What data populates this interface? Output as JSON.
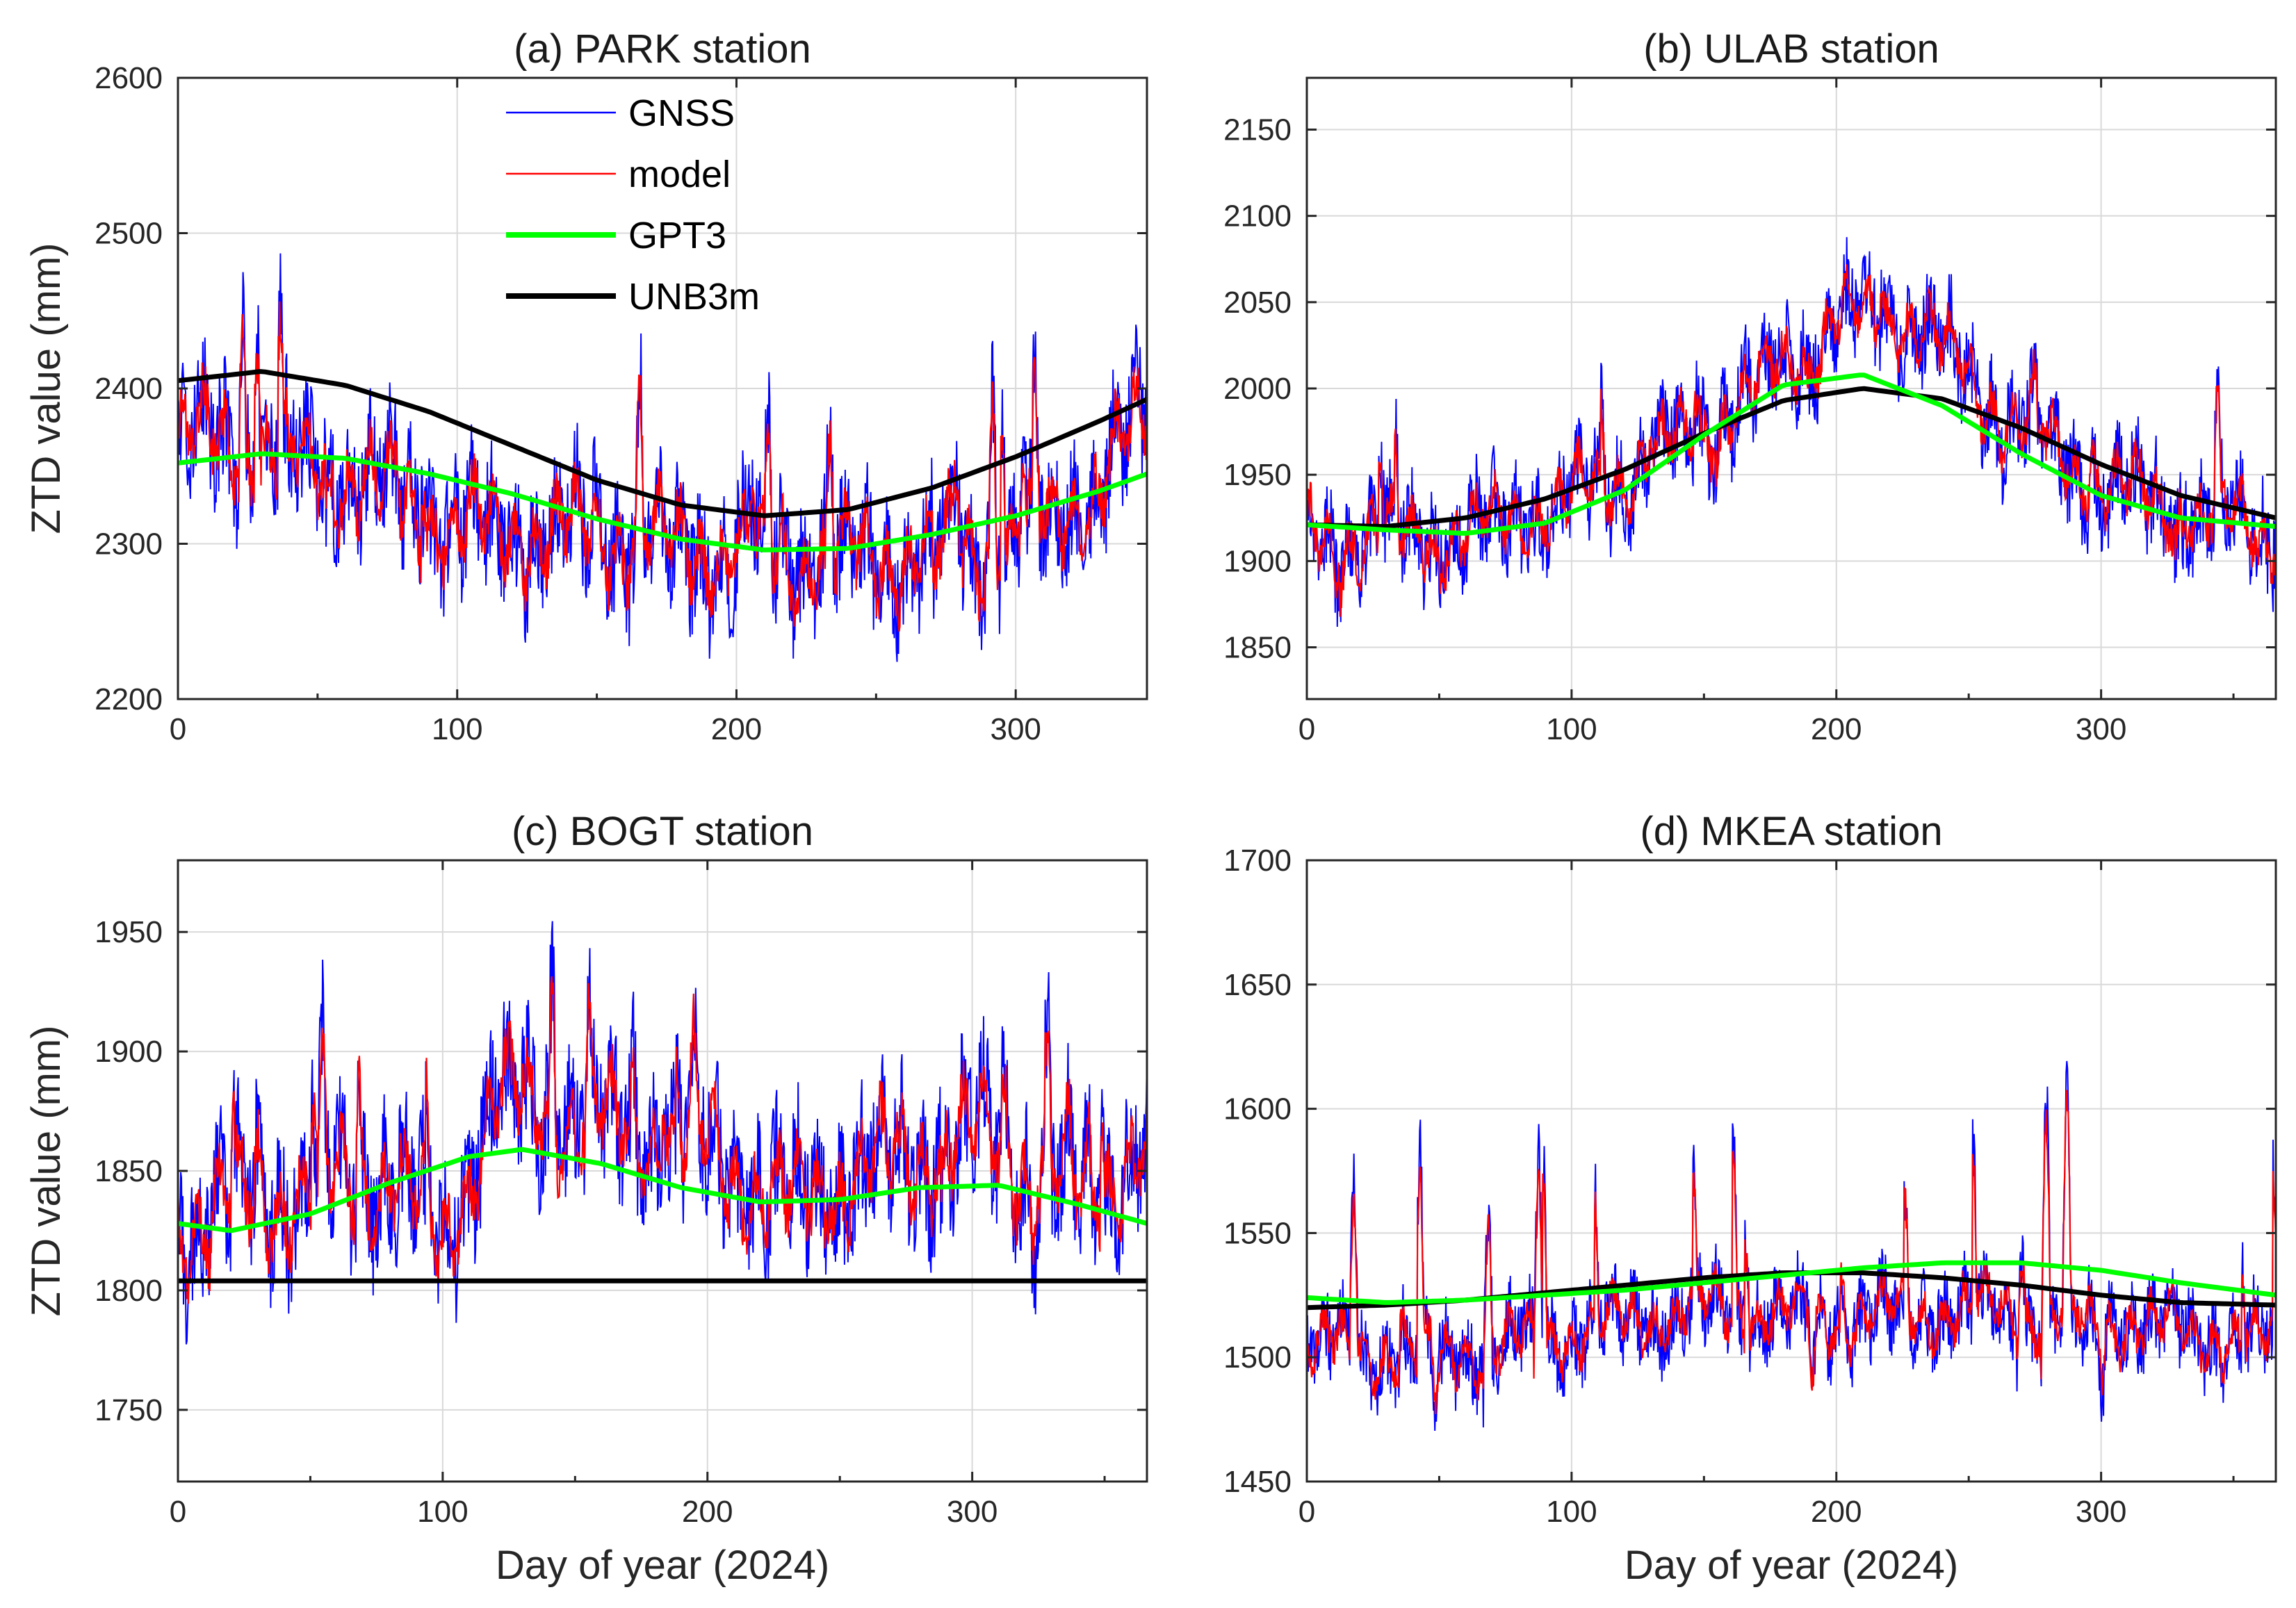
{
  "colors": {
    "GNSS": "#0000ff",
    "model": "#ff0000",
    "GPT3": "#00ff00",
    "UNB3m": "#000000"
  },
  "chart_data": [
    {
      "type": "line",
      "title": "(a) PARK station",
      "ylabel": "ZTD value (mm)",
      "xlabel": "",
      "xlim": [
        0,
        347
      ],
      "ylim": [
        2200,
        2600
      ],
      "xticks": [
        0,
        100,
        200,
        300
      ],
      "yticks": [
        2200,
        2300,
        2400,
        2500,
        2600
      ],
      "legend": {
        "placement": "top",
        "entries": [
          "GNSS",
          "model",
          "GPT3",
          "UNB3m"
        ]
      },
      "noisy": {
        "base": [
          [
            0,
            2370
          ],
          [
            30,
            2360
          ],
          [
            60,
            2345
          ],
          [
            100,
            2310
          ],
          [
            150,
            2305
          ],
          [
            200,
            2295
          ],
          [
            250,
            2290
          ],
          [
            300,
            2300
          ],
          [
            330,
            2340
          ],
          [
            347,
            2380
          ]
        ],
        "amp": 55,
        "spikes": 70
      },
      "series": [
        {
          "name": "UNB3m",
          "x": [
            0,
            30,
            60,
            90,
            120,
            150,
            180,
            210,
            240,
            270,
            300,
            330,
            347
          ],
          "y": [
            2405,
            2411,
            2402,
            2385,
            2363,
            2341,
            2325,
            2318,
            2322,
            2336,
            2356,
            2379,
            2393
          ]
        },
        {
          "name": "GPT3",
          "x": [
            0,
            30,
            60,
            90,
            120,
            150,
            180,
            210,
            240,
            270,
            300,
            330,
            347
          ],
          "y": [
            2352,
            2358,
            2355,
            2345,
            2332,
            2316,
            2303,
            2296,
            2297,
            2306,
            2318,
            2334,
            2345
          ]
        }
      ]
    },
    {
      "type": "line",
      "title": "(b) ULAB station",
      "ylabel": "",
      "xlabel": "",
      "xlim": [
        0,
        366
      ],
      "ylim": [
        1820,
        2180
      ],
      "xticks": [
        0,
        100,
        200,
        300
      ],
      "yticks": [
        1850,
        1900,
        1950,
        2000,
        2050,
        2100,
        2150
      ],
      "noisy": {
        "base": [
          [
            0,
            1915
          ],
          [
            50,
            1912
          ],
          [
            100,
            1935
          ],
          [
            150,
            1975
          ],
          [
            200,
            2040
          ],
          [
            230,
            2040
          ],
          [
            260,
            1990
          ],
          [
            300,
            1945
          ],
          [
            340,
            1925
          ],
          [
            366,
            1920
          ]
        ],
        "amp": 38,
        "spikes": 40
      },
      "series": [
        {
          "name": "UNB3m",
          "x": [
            0,
            30,
            60,
            90,
            120,
            150,
            180,
            210,
            240,
            270,
            300,
            330,
            366
          ],
          "y": [
            1921,
            1920,
            1925,
            1936,
            1953,
            1974,
            1993,
            2000,
            1994,
            1977,
            1956,
            1938,
            1925
          ]
        },
        {
          "name": "GPT3",
          "x": [
            0,
            30,
            60,
            90,
            120,
            150,
            180,
            210,
            240,
            270,
            300,
            330,
            366
          ],
          "y": [
            1921,
            1918,
            1916,
            1922,
            1941,
            1973,
            2002,
            2008,
            1990,
            1962,
            1938,
            1925,
            1920
          ]
        }
      ]
    },
    {
      "type": "line",
      "title": "(c) BOGT station",
      "ylabel": "ZTD value (mm)",
      "xlabel": "Day of year (2024)",
      "xlim": [
        0,
        366
      ],
      "ylim": [
        1720,
        1980
      ],
      "xticks": [
        0,
        100,
        200,
        300
      ],
      "yticks": [
        1750,
        1800,
        1850,
        1900,
        1950
      ],
      "noisy": {
        "base": [
          [
            0,
            1830
          ],
          [
            40,
            1840
          ],
          [
            80,
            1850
          ],
          [
            100,
            1820
          ],
          [
            120,
            1880
          ],
          [
            160,
            1870
          ],
          [
            200,
            1860
          ],
          [
            230,
            1835
          ],
          [
            260,
            1850
          ],
          [
            300,
            1865
          ],
          [
            340,
            1840
          ],
          [
            366,
            1860
          ]
        ],
        "amp": 40,
        "spikes": 40
      },
      "series": [
        {
          "name": "UNB3m",
          "x": [
            0,
            366
          ],
          "y": [
            1804,
            1804
          ]
        },
        {
          "name": "GPT3",
          "x": [
            0,
            20,
            50,
            80,
            110,
            130,
            160,
            190,
            220,
            250,
            280,
            310,
            340,
            366
          ],
          "y": [
            1828,
            1825,
            1832,
            1845,
            1856,
            1859,
            1853,
            1843,
            1837,
            1838,
            1843,
            1844,
            1836,
            1828
          ]
        }
      ]
    },
    {
      "type": "line",
      "title": "(d) MKEA station",
      "ylabel": "",
      "xlabel": "Day of year (2024)",
      "xlim": [
        0,
        366
      ],
      "ylim": [
        1450,
        1700
      ],
      "xticks": [
        0,
        100,
        200,
        300
      ],
      "yticks": [
        1450,
        1500,
        1550,
        1600,
        1650,
        1700
      ],
      "noisy": {
        "base": [
          [
            0,
            1505
          ],
          [
            50,
            1500
          ],
          [
            100,
            1510
          ],
          [
            150,
            1520
          ],
          [
            200,
            1515
          ],
          [
            250,
            1520
          ],
          [
            300,
            1515
          ],
          [
            366,
            1505
          ]
        ],
        "amp": 22,
        "spikes": 60
      },
      "series": [
        {
          "name": "UNB3m",
          "x": [
            0,
            30,
            60,
            90,
            120,
            150,
            180,
            210,
            240,
            270,
            300,
            330,
            366
          ],
          "y": [
            1520,
            1521,
            1523,
            1526,
            1529,
            1532,
            1534,
            1534,
            1532,
            1529,
            1525,
            1522,
            1521
          ]
        },
        {
          "name": "GPT3",
          "x": [
            0,
            30,
            60,
            90,
            120,
            150,
            180,
            210,
            240,
            270,
            300,
            330,
            366
          ],
          "y": [
            1524,
            1522,
            1523,
            1525,
            1527,
            1530,
            1533,
            1536,
            1538,
            1538,
            1535,
            1530,
            1525
          ]
        }
      ]
    }
  ]
}
